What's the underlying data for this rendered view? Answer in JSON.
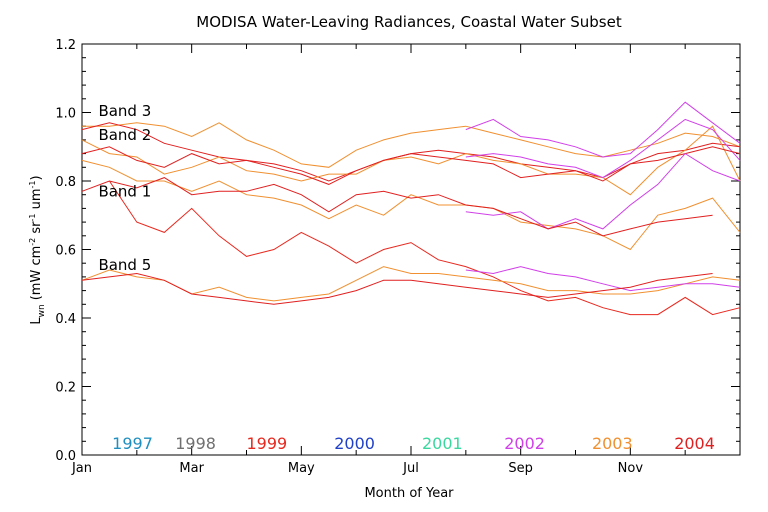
{
  "chart_data": {
    "type": "line",
    "title": "MODISA Water-Leaving Radiances, Coastal Water Subset",
    "xlabel": "Month of Year",
    "ylabel_main": "L",
    "ylabel_sub": "wn",
    "ylabel_units": "(mW cm",
    "ylabel_exp1": "-2",
    "ylabel_mid": " sr",
    "ylabel_exp2": "-1",
    "ylabel_end": " um",
    "ylabel_exp3": "-1",
    "ylabel_close": ")",
    "xlim": [
      0,
      12
    ],
    "ylim": [
      0.0,
      1.2
    ],
    "x_ticks": [
      {
        "value": 0,
        "label": "Jan"
      },
      {
        "value": 2,
        "label": "Mar"
      },
      {
        "value": 4,
        "label": "May"
      },
      {
        "value": 6,
        "label": "Jul"
      },
      {
        "value": 8,
        "label": "Sep"
      },
      {
        "value": 10,
        "label": "Nov"
      }
    ],
    "y_ticks": [
      {
        "value": 0.0,
        "label": "0.0"
      },
      {
        "value": 0.2,
        "label": "0.2"
      },
      {
        "value": 0.4,
        "label": "0.4"
      },
      {
        "value": 0.6,
        "label": "0.6"
      },
      {
        "value": 0.8,
        "label": "0.8"
      },
      {
        "value": 1.0,
        "label": "1.0"
      },
      {
        "value": 1.2,
        "label": "1.2"
      }
    ],
    "band_labels": [
      {
        "text": "Band 3",
        "x": 0.3,
        "y": 1.005
      },
      {
        "text": "Band 2",
        "x": 0.3,
        "y": 0.935
      },
      {
        "text": "Band 1",
        "x": 0.3,
        "y": 0.77
      },
      {
        "text": "Band 5",
        "x": 0.3,
        "y": 0.555
      }
    ],
    "year_legend": [
      {
        "year": "1997",
        "color": "#1f8fbf",
        "x": 0.55
      },
      {
        "year": "1998",
        "color": "#707070",
        "x": 1.7
      },
      {
        "year": "1999",
        "color": "#e8281e",
        "x": 3.0
      },
      {
        "year": "2000",
        "color": "#2040c8",
        "x": 4.6
      },
      {
        "year": "2001",
        "color": "#3ad8a0",
        "x": 6.2
      },
      {
        "year": "2002",
        "color": "#d040e8",
        "x": 7.7
      },
      {
        "year": "2003",
        "color": "#f09030",
        "x": 9.3
      },
      {
        "year": "2004",
        "color": "#e02020",
        "x": 10.8
      }
    ],
    "series": [
      {
        "band": "Band 3",
        "color": "#f09030",
        "x": [
          0,
          0.5,
          1,
          1.5,
          2,
          2.5,
          3,
          3.5,
          4,
          4.5,
          5,
          5.5,
          6,
          6.5,
          7,
          7.5,
          8,
          8.5,
          9,
          9.5,
          10,
          10.5,
          11,
          11.5,
          12
        ],
        "values": [
          0.96,
          0.96,
          0.97,
          0.96,
          0.93,
          0.97,
          0.92,
          0.89,
          0.85,
          0.84,
          0.89,
          0.92,
          0.94,
          0.95,
          0.96,
          0.94,
          0.92,
          0.9,
          0.88,
          0.87,
          0.89,
          0.91,
          0.94,
          0.93,
          0.9
        ]
      },
      {
        "band": "Band 3",
        "color": "#d040e8",
        "x": [
          7,
          7.5,
          8,
          8.5,
          9,
          9.5,
          10,
          10.5,
          11,
          11.5,
          12
        ],
        "values": [
          0.95,
          0.98,
          0.93,
          0.92,
          0.9,
          0.87,
          0.88,
          0.95,
          1.03,
          0.97,
          0.91
        ]
      },
      {
        "band": "Band 3",
        "color": "#e02020",
        "x": [
          0,
          0.5,
          1,
          1.5,
          2,
          2.5,
          3,
          3.5,
          4,
          4.5,
          5,
          5.5,
          6,
          6.5,
          7,
          7.5,
          8,
          8.5,
          9,
          9.5,
          10,
          10.5,
          11,
          11.5,
          12
        ],
        "values": [
          0.95,
          0.97,
          0.95,
          0.91,
          0.89,
          0.87,
          0.86,
          0.85,
          0.83,
          0.8,
          0.83,
          0.86,
          0.88,
          0.89,
          0.88,
          0.87,
          0.85,
          0.84,
          0.83,
          0.81,
          0.85,
          0.88,
          0.89,
          0.91,
          0.9
        ]
      },
      {
        "band": "Band 2",
        "color": "#f09030",
        "x": [
          0,
          0.5,
          1,
          1.5,
          2,
          2.5,
          3,
          3.5,
          4,
          4.5,
          5,
          5.5,
          6,
          6.5,
          7,
          7.5,
          8,
          8.5,
          9,
          9.5,
          10,
          10.5,
          11,
          11.5,
          12
        ],
        "values": [
          0.92,
          0.88,
          0.87,
          0.82,
          0.84,
          0.87,
          0.83,
          0.82,
          0.8,
          0.82,
          0.82,
          0.86,
          0.87,
          0.85,
          0.88,
          0.86,
          0.85,
          0.82,
          0.82,
          0.81,
          0.76,
          0.84,
          0.89,
          0.96,
          0.8
        ]
      },
      {
        "band": "Band 2",
        "color": "#d040e8",
        "x": [
          7,
          7.5,
          8,
          8.5,
          9,
          9.5,
          10,
          10.5,
          11,
          11.5,
          12
        ],
        "values": [
          0.87,
          0.88,
          0.87,
          0.85,
          0.84,
          0.81,
          0.86,
          0.92,
          0.98,
          0.95,
          0.86
        ]
      },
      {
        "band": "Band 2",
        "color": "#e02020",
        "x": [
          0,
          0.5,
          1,
          1.5,
          2,
          2.5,
          3,
          3.5,
          4,
          4.5,
          5,
          5.5,
          6,
          6.5,
          7,
          7.5,
          8,
          8.5,
          9,
          9.5,
          10,
          10.5,
          11,
          11.5,
          12
        ],
        "values": [
          0.88,
          0.9,
          0.86,
          0.84,
          0.88,
          0.85,
          0.86,
          0.84,
          0.82,
          0.79,
          0.83,
          0.86,
          0.88,
          0.87,
          0.86,
          0.85,
          0.81,
          0.82,
          0.83,
          0.8,
          0.85,
          0.86,
          0.88,
          0.9,
          0.88
        ]
      },
      {
        "band": "Band 1",
        "color": "#f09030",
        "x": [
          0,
          0.5,
          1,
          1.5,
          2,
          2.5,
          3,
          3.5,
          4,
          4.5,
          5,
          5.5,
          6,
          6.5,
          7,
          7.5,
          8,
          8.5,
          9,
          9.5,
          10,
          10.5,
          11,
          11.5,
          12
        ],
        "values": [
          0.86,
          0.84,
          0.8,
          0.8,
          0.77,
          0.8,
          0.76,
          0.75,
          0.73,
          0.69,
          0.73,
          0.7,
          0.76,
          0.73,
          0.73,
          0.72,
          0.68,
          0.67,
          0.66,
          0.64,
          0.6,
          0.7,
          0.72,
          0.75,
          0.65
        ]
      },
      {
        "band": "Band 1",
        "color": "#d040e8",
        "x": [
          7,
          7.5,
          8,
          8.5,
          9,
          9.5,
          10,
          10.5,
          11,
          11.5,
          12
        ],
        "values": [
          0.71,
          0.7,
          0.71,
          0.66,
          0.69,
          0.66,
          0.73,
          0.79,
          0.88,
          0.83,
          0.8
        ]
      },
      {
        "band": "Band 1",
        "color": "#e02020",
        "x": [
          0,
          0.5,
          1,
          1.5,
          2,
          2.5,
          3,
          3.5,
          4,
          4.5,
          5,
          5.5,
          6,
          6.5,
          7,
          7.5,
          8,
          8.5,
          9,
          9.5,
          10,
          10.5,
          11,
          11.5
        ],
        "values": [
          0.77,
          0.8,
          0.78,
          0.81,
          0.76,
          0.77,
          0.77,
          0.79,
          0.76,
          0.71,
          0.76,
          0.77,
          0.75,
          0.76,
          0.73,
          0.72,
          0.69,
          0.66,
          0.68,
          0.64,
          0.66,
          0.68,
          0.69,
          0.7
        ]
      },
      {
        "band": "Band 1",
        "color": "#e8281e",
        "x": [
          0.5,
          1,
          1.5,
          2,
          2.5,
          3,
          3.5,
          4,
          4.5,
          5,
          5.5,
          6,
          6.5,
          7,
          7.5,
          8,
          8.5,
          9,
          9.5,
          10,
          10.5,
          11,
          11.5,
          12
        ],
        "values": [
          0.8,
          0.68,
          0.65,
          0.72,
          0.64,
          0.58,
          0.6,
          0.65,
          0.61,
          0.56,
          0.6,
          0.62,
          0.57,
          0.55,
          0.52,
          0.48,
          0.45,
          0.46,
          0.43,
          0.41,
          0.41,
          0.46,
          0.41,
          0.43
        ]
      },
      {
        "band": "Band 5",
        "color": "#f09030",
        "x": [
          0,
          0.5,
          1,
          1.5,
          2,
          2.5,
          3,
          3.5,
          4,
          4.5,
          5,
          5.5,
          6,
          6.5,
          7,
          7.5,
          8,
          8.5,
          9,
          9.5,
          10,
          10.5,
          11,
          11.5,
          12
        ],
        "values": [
          0.51,
          0.54,
          0.52,
          0.51,
          0.47,
          0.49,
          0.46,
          0.45,
          0.46,
          0.47,
          0.51,
          0.55,
          0.53,
          0.53,
          0.52,
          0.51,
          0.5,
          0.48,
          0.48,
          0.47,
          0.47,
          0.48,
          0.5,
          0.52,
          0.51
        ]
      },
      {
        "band": "Band 5",
        "color": "#d040e8",
        "x": [
          7,
          7.5,
          8,
          8.5,
          9,
          9.5,
          10,
          10.5,
          11,
          11.5,
          12
        ],
        "values": [
          0.54,
          0.53,
          0.55,
          0.53,
          0.52,
          0.5,
          0.48,
          0.49,
          0.5,
          0.5,
          0.49
        ]
      },
      {
        "band": "Band 5",
        "color": "#e02020",
        "x": [
          0,
          0.5,
          1,
          1.5,
          2,
          2.5,
          3,
          3.5,
          4,
          4.5,
          5,
          5.5,
          6,
          6.5,
          7,
          7.5,
          8,
          8.5,
          9,
          9.5,
          10,
          10.5,
          11,
          11.5
        ],
        "values": [
          0.51,
          0.52,
          0.53,
          0.51,
          0.47,
          0.46,
          0.45,
          0.44,
          0.45,
          0.46,
          0.48,
          0.51,
          0.51,
          0.5,
          0.49,
          0.48,
          0.47,
          0.46,
          0.47,
          0.48,
          0.49,
          0.51,
          0.52,
          0.53
        ]
      }
    ]
  }
}
